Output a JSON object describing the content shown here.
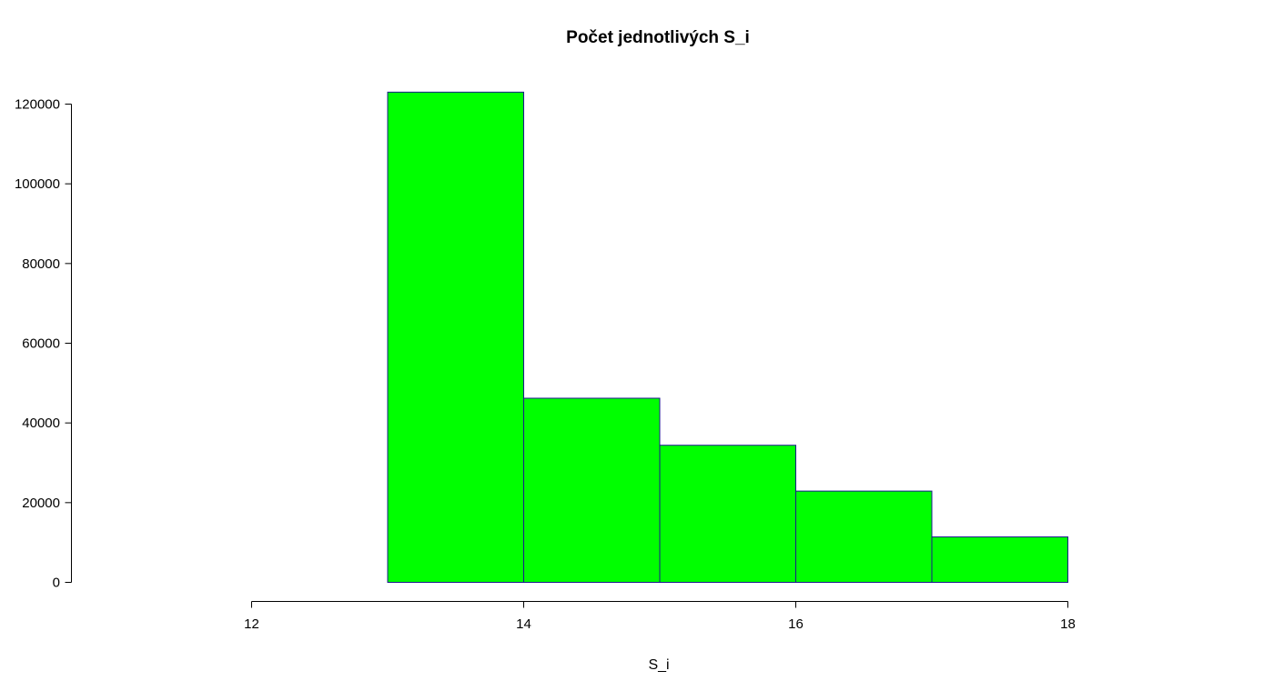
{
  "chart_data": {
    "type": "bar",
    "title": "Počet jednotlivých S_i",
    "xlabel": "S_i",
    "ylabel": "",
    "histogram": true,
    "bins": [
      {
        "x0": 13,
        "x1": 14,
        "value": 123000
      },
      {
        "x0": 14,
        "x1": 15,
        "value": 46200
      },
      {
        "x0": 15,
        "x1": 16,
        "value": 34400
      },
      {
        "x0": 16,
        "x1": 17,
        "value": 22900
      },
      {
        "x0": 17,
        "x1": 18,
        "value": 11400
      }
    ],
    "xlim": [
      12,
      18
    ],
    "ylim": [
      0,
      120000
    ],
    "x_ticks": [
      "12",
      "14",
      "16",
      "18"
    ],
    "y_ticks": [
      "0",
      "20000",
      "40000",
      "60000",
      "80000",
      "100000",
      "120000"
    ],
    "grid": false,
    "legend": "none",
    "bar_color": "#00ff00",
    "bar_border_color": "#1a1a8c"
  }
}
